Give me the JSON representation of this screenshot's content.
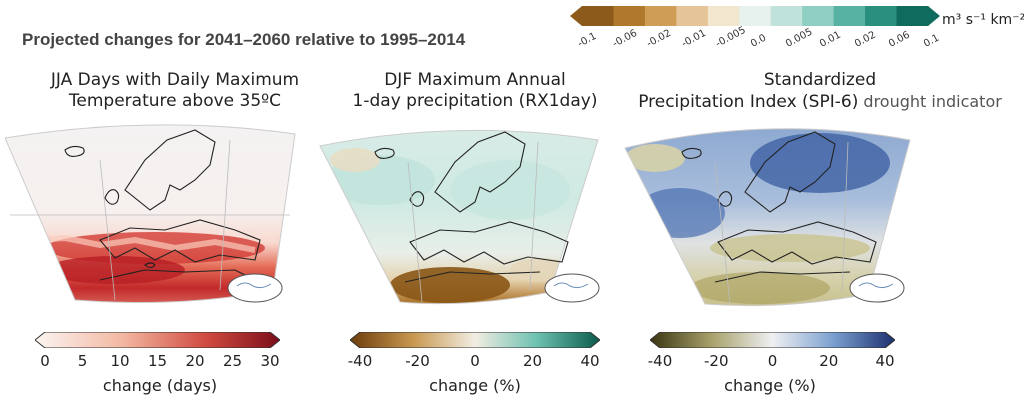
{
  "title": "Projected changes for 2041–2060 relative to 1995–2014",
  "top_colorbar": {
    "ticks": [
      "-0.1",
      "-0.06",
      "-0.02",
      "-0.01",
      "-0.005",
      "0.0",
      "0.005",
      "0.01",
      "0.02",
      "0.06",
      "0.1"
    ],
    "unit": "m³ s⁻¹ km⁻²",
    "colors": [
      "#8c5a1a",
      "#b0782b",
      "#cf9d56",
      "#e5c597",
      "#f3e6cf",
      "#e7f1ee",
      "#bfe2da",
      "#8fcfc3",
      "#58b2a3",
      "#2a8f7f",
      "#0f6b5e"
    ]
  },
  "panels": [
    {
      "title_line1": "JJA Days with Daily Maximum",
      "title_line2": "Temperature above 35ºC",
      "colorbar_ticks": [
        "0",
        "5",
        "10",
        "15",
        "20",
        "25",
        "30"
      ],
      "colorbar_label": "change (days)",
      "colors": [
        "#fbf3ef",
        "#f7d6c8",
        "#efa88f",
        "#e07a60",
        "#c8463b",
        "#a11f27",
        "#7a0e1a"
      ]
    },
    {
      "title_line1": "DJF Maximum Annual",
      "title_line2": "1-day precipitation (RX1day)",
      "colorbar_ticks": [
        "-40",
        "-20",
        "0",
        "20",
        "40"
      ],
      "colorbar_label": "change (%)",
      "colors": [
        "#6b3d0c",
        "#a36b22",
        "#d4a862",
        "#f0e2c4",
        "#e6f2ee",
        "#a8dcd1",
        "#5ab6a5",
        "#1f8a79",
        "#0a5a4c"
      ]
    },
    {
      "title_line1": "Standardized",
      "title_line2": "Precipitation Index (SPI-6)",
      "title_extra": " drought indicator",
      "colorbar_ticks": [
        "-40",
        "-20",
        "0",
        "20",
        "40"
      ],
      "colorbar_label": "change (%)",
      "colors": [
        "#3a3512",
        "#6e6530",
        "#a8a06a",
        "#dcd9b8",
        "#eef1f3",
        "#bcd0e6",
        "#7a9fcf",
        "#3f68ac",
        "#1c2f6e"
      ]
    }
  ]
}
